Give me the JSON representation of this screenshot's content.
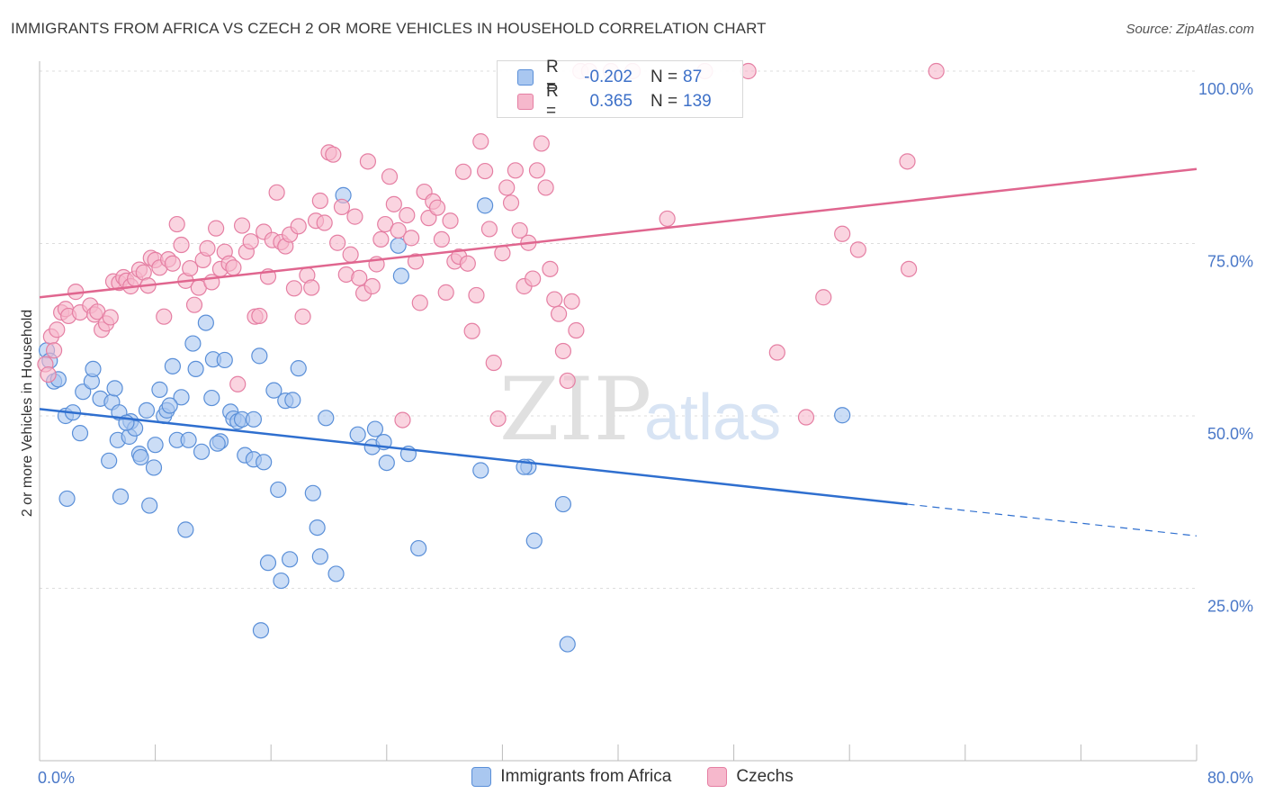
{
  "title": "IMMIGRANTS FROM AFRICA VS CZECH 2 OR MORE VEHICLES IN HOUSEHOLD CORRELATION CHART",
  "source": "Source: ZipAtlas.com",
  "watermark": {
    "zip": "ZIP",
    "atlas": "atlas"
  },
  "legend": {
    "rows": [
      {
        "r_label": "R =",
        "r_value": "-0.202",
        "n_label": "N =",
        "n_value": "87"
      },
      {
        "r_label": "R =",
        "r_value": "0.365",
        "n_label": "N =",
        "n_value": "139"
      }
    ]
  },
  "bottom_legend": [
    "Immigrants from Africa",
    "Czechs"
  ],
  "colors": {
    "africa_fill": "#a9c7f0",
    "africa_stroke": "#5a8fd8",
    "africa_line": "#2f6fcf",
    "czech_fill": "#f6b8cc",
    "czech_stroke": "#e57fa3",
    "czech_line": "#e0668f",
    "tick_text": "#4a78c8",
    "grid": "#dddddd"
  },
  "chart_data": {
    "type": "scatter",
    "xlabel": "",
    "ylabel": "2 or more Vehicles in Household",
    "xlim": [
      0,
      80
    ],
    "ylim": [
      0,
      100
    ],
    "x_ticks": [
      "0.0%",
      "80.0%"
    ],
    "y_ticks": [
      {
        "value": 100,
        "label": "100.0%"
      },
      {
        "value": 75,
        "label": "75.0%"
      },
      {
        "value": 50,
        "label": "50.0%"
      },
      {
        "value": 25,
        "label": "25.0%"
      }
    ],
    "grid": true,
    "series": [
      {
        "name": "Immigrants from Africa",
        "r": -0.202,
        "n": 87,
        "trend": {
          "x0": 0,
          "y0": 51.0,
          "x1": 60,
          "y1": 37.2,
          "dash_to_x": 80,
          "dash_to_y": 32.6
        },
        "points": [
          [
            0.5,
            59.5
          ],
          [
            0.7,
            58
          ],
          [
            1.0,
            55
          ],
          [
            1.3,
            55.3
          ],
          [
            1.8,
            50
          ],
          [
            2.3,
            50.5
          ],
          [
            1.9,
            38
          ],
          [
            3.0,
            53.5
          ],
          [
            2.8,
            47.5
          ],
          [
            3.6,
            55
          ],
          [
            3.7,
            56.8
          ],
          [
            4.2,
            52.5
          ],
          [
            4.8,
            43.5
          ],
          [
            5.0,
            52
          ],
          [
            5.2,
            54
          ],
          [
            5.5,
            50.5
          ],
          [
            5.4,
            46.5
          ],
          [
            5.6,
            38.3
          ],
          [
            6.2,
            47
          ],
          [
            6.3,
            49.2
          ],
          [
            6.6,
            48.2
          ],
          [
            6.9,
            44.5
          ],
          [
            7.0,
            44
          ],
          [
            7.4,
            50.8
          ],
          [
            7.6,
            37
          ],
          [
            7.9,
            42.5
          ],
          [
            8.0,
            45.8
          ],
          [
            8.3,
            53.8
          ],
          [
            8.6,
            50
          ],
          [
            8.8,
            50.8
          ],
          [
            9.2,
            57.2
          ],
          [
            9.5,
            46.5
          ],
          [
            9.8,
            52.7
          ],
          [
            10.1,
            33.5
          ],
          [
            10.3,
            46.5
          ],
          [
            10.6,
            60.5
          ],
          [
            10.8,
            56.8
          ],
          [
            11.2,
            44.8
          ],
          [
            11.5,
            63.5
          ],
          [
            11.9,
            52.6
          ],
          [
            12.0,
            58.2
          ],
          [
            12.5,
            46.3
          ],
          [
            12.8,
            58.1
          ],
          [
            13.2,
            50.6
          ],
          [
            13.4,
            49.6
          ],
          [
            13.7,
            49.2
          ],
          [
            14.0,
            49.5
          ],
          [
            14.2,
            44.3
          ],
          [
            14.8,
            49.5
          ],
          [
            14.8,
            43.7
          ],
          [
            15.2,
            58.7
          ],
          [
            15.5,
            43.3
          ],
          [
            15.8,
            28.7
          ],
          [
            16.2,
            53.7
          ],
          [
            16.5,
            39.3
          ],
          [
            16.7,
            26.1
          ],
          [
            17.0,
            52.2
          ],
          [
            17.3,
            29.2
          ],
          [
            17.5,
            52.3
          ],
          [
            17.9,
            56.9
          ],
          [
            18.9,
            38.8
          ],
          [
            19.2,
            33.8
          ],
          [
            19.4,
            29.6
          ],
          [
            19.8,
            49.7
          ],
          [
            20.5,
            27.1
          ],
          [
            21.0,
            82
          ],
          [
            22.0,
            47.3
          ],
          [
            23.0,
            45.5
          ],
          [
            23.2,
            48.1
          ],
          [
            23.8,
            46.2
          ],
          [
            24.0,
            43.2
          ],
          [
            24.8,
            74.7
          ],
          [
            25.0,
            70.3
          ],
          [
            25.5,
            44.5
          ],
          [
            26.2,
            30.8
          ],
          [
            30.5,
            42.1
          ],
          [
            30.8,
            80.5
          ],
          [
            33.8,
            42.6
          ],
          [
            33.5,
            42.6
          ],
          [
            34.2,
            31.9
          ],
          [
            36.2,
            37.2
          ],
          [
            36.5,
            16.9
          ],
          [
            55.5,
            50.1
          ],
          [
            15.3,
            18.9
          ],
          [
            9.0,
            51.5
          ],
          [
            6.0,
            49.0
          ],
          [
            12.3,
            46.0
          ]
        ]
      },
      {
        "name": "Czechs",
        "r": 0.365,
        "n": 139,
        "trend": {
          "x0": 0,
          "y0": 67.2,
          "x1": 80,
          "y1": 85.8
        },
        "points": [
          [
            0.4,
            57.5
          ],
          [
            0.6,
            56
          ],
          [
            0.8,
            61.5
          ],
          [
            1.0,
            59.5
          ],
          [
            1.2,
            62.5
          ],
          [
            1.5,
            65
          ],
          [
            1.8,
            65.5
          ],
          [
            2.0,
            64.5
          ],
          [
            2.5,
            68
          ],
          [
            2.8,
            65
          ],
          [
            3.5,
            66
          ],
          [
            3.8,
            64.7
          ],
          [
            4.0,
            65.1
          ],
          [
            4.3,
            62.5
          ],
          [
            4.6,
            63.4
          ],
          [
            4.9,
            64.3
          ],
          [
            5.1,
            69.5
          ],
          [
            5.5,
            69.3
          ],
          [
            5.8,
            70.1
          ],
          [
            6.0,
            69.6
          ],
          [
            6.3,
            68.8
          ],
          [
            6.6,
            69.9
          ],
          [
            6.9,
            71.2
          ],
          [
            7.2,
            70.8
          ],
          [
            7.5,
            68.9
          ],
          [
            7.7,
            72.9
          ],
          [
            8.0,
            72.6
          ],
          [
            8.3,
            71.5
          ],
          [
            8.6,
            64.4
          ],
          [
            8.9,
            72.7
          ],
          [
            9.2,
            72.1
          ],
          [
            9.5,
            77.8
          ],
          [
            9.8,
            74.8
          ],
          [
            10.1,
            69.6
          ],
          [
            10.4,
            71.4
          ],
          [
            10.7,
            66.1
          ],
          [
            11.0,
            68.6
          ],
          [
            11.3,
            72.6
          ],
          [
            11.6,
            74.3
          ],
          [
            11.9,
            69.4
          ],
          [
            12.2,
            77.2
          ],
          [
            12.5,
            71.3
          ],
          [
            12.8,
            73.8
          ],
          [
            13.1,
            72.1
          ],
          [
            13.4,
            71.5
          ],
          [
            13.7,
            54.6
          ],
          [
            14.0,
            77.6
          ],
          [
            14.3,
            73.8
          ],
          [
            14.6,
            75.3
          ],
          [
            14.9,
            64.4
          ],
          [
            15.2,
            64.5
          ],
          [
            15.5,
            76.7
          ],
          [
            15.8,
            70.2
          ],
          [
            16.1,
            75.5
          ],
          [
            16.4,
            82.4
          ],
          [
            16.7,
            75.2
          ],
          [
            17.0,
            74.6
          ],
          [
            17.3,
            76.3
          ],
          [
            17.6,
            68.5
          ],
          [
            17.9,
            77.5
          ],
          [
            18.2,
            64.4
          ],
          [
            18.5,
            70.4
          ],
          [
            18.8,
            68.6
          ],
          [
            19.1,
            78.3
          ],
          [
            19.4,
            81.2
          ],
          [
            19.7,
            78
          ],
          [
            20.0,
            88.2
          ],
          [
            20.3,
            87.9
          ],
          [
            20.6,
            75.1
          ],
          [
            20.9,
            80.3
          ],
          [
            21.2,
            70.5
          ],
          [
            21.5,
            73.4
          ],
          [
            21.8,
            78.9
          ],
          [
            22.1,
            70
          ],
          [
            22.4,
            67.8
          ],
          [
            22.7,
            86.9
          ],
          [
            23.0,
            68.8
          ],
          [
            23.3,
            72
          ],
          [
            23.6,
            75.6
          ],
          [
            23.9,
            77.8
          ],
          [
            24.2,
            84.7
          ],
          [
            24.5,
            80.7
          ],
          [
            24.8,
            76.9
          ],
          [
            25.1,
            49.4
          ],
          [
            25.4,
            79.1
          ],
          [
            25.7,
            75.8
          ],
          [
            26.0,
            72.4
          ],
          [
            26.3,
            66.4
          ],
          [
            26.6,
            82.5
          ],
          [
            26.9,
            78.7
          ],
          [
            27.2,
            81.1
          ],
          [
            27.5,
            80.2
          ],
          [
            27.8,
            75.6
          ],
          [
            28.1,
            67.9
          ],
          [
            28.4,
            78.3
          ],
          [
            28.7,
            72.4
          ],
          [
            29.0,
            73.1
          ],
          [
            29.3,
            85.4
          ],
          [
            29.6,
            72.1
          ],
          [
            29.9,
            62.3
          ],
          [
            30.2,
            67.5
          ],
          [
            30.5,
            89.8
          ],
          [
            30.8,
            85.5
          ],
          [
            31.1,
            77.1
          ],
          [
            31.4,
            57.7
          ],
          [
            31.7,
            49.6
          ],
          [
            32.0,
            73.6
          ],
          [
            32.3,
            83.1
          ],
          [
            32.6,
            80.9
          ],
          [
            32.9,
            85.6
          ],
          [
            33.2,
            76.9
          ],
          [
            33.5,
            68.8
          ],
          [
            33.8,
            75.1
          ],
          [
            34.1,
            69.9
          ],
          [
            34.4,
            85.6
          ],
          [
            34.7,
            89.5
          ],
          [
            35.0,
            83.1
          ],
          [
            35.3,
            71.3
          ],
          [
            35.6,
            66.9
          ],
          [
            35.9,
            64.8
          ],
          [
            36.2,
            59.4
          ],
          [
            36.5,
            55.1
          ],
          [
            36.8,
            66.6
          ],
          [
            37.1,
            62.4
          ],
          [
            37.4,
            100
          ],
          [
            38.0,
            100
          ],
          [
            39.5,
            100
          ],
          [
            41.0,
            100
          ],
          [
            43.4,
            78.6
          ],
          [
            46.0,
            100
          ],
          [
            49.0,
            100
          ],
          [
            54.2,
            67.2
          ],
          [
            55.5,
            76.4
          ],
          [
            56.6,
            74.1
          ],
          [
            60.1,
            71.3
          ],
          [
            60.0,
            86.9
          ],
          [
            62.0,
            100
          ],
          [
            51.0,
            59.2
          ],
          [
            53.0,
            49.8
          ]
        ]
      }
    ]
  }
}
